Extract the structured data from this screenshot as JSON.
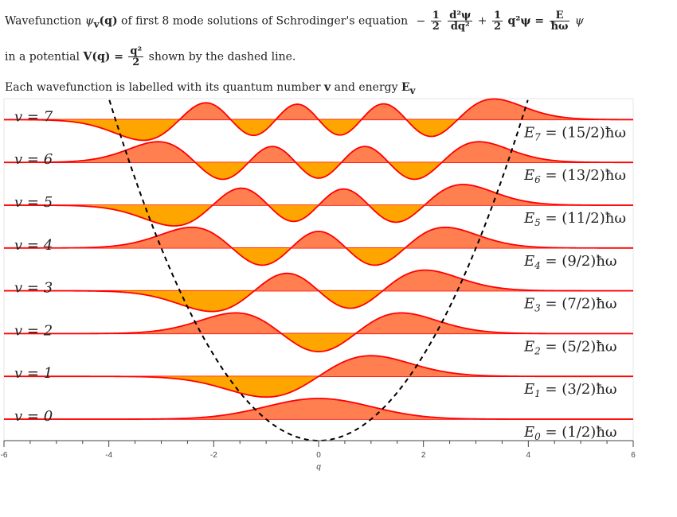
{
  "header": {
    "line1_prefix": "Wavefunction",
    "line1_psi": "ψ",
    "line1_sub": "v",
    "line1_arg": "(q)",
    "line1_mid": "of first 8 mode solutions of Schrodinger's equation",
    "eq_minus": "−",
    "eq_frac1_num": "1",
    "eq_frac1_den": "2",
    "eq_frac2_num": "d²ψ",
    "eq_frac2_den": "dq²",
    "eq_plus": "+",
    "eq_frac3_num": "1",
    "eq_frac3_den": "2",
    "eq_term2": "q²ψ =",
    "eq_frac4_num": "E",
    "eq_frac4_den": "ħω",
    "eq_tail": "ψ",
    "line2_prefix": "in a potential",
    "line2_V": "V(q) =",
    "line2_frac_num": "q²",
    "line2_frac_den": "2",
    "line2_suffix": "shown by the dashed line.",
    "line3_prefix": "Each wavefunction is labelled with its quantum number",
    "line3_v": "v",
    "line3_mid": "and energy",
    "line3_E": "E",
    "line3_Esub": "v"
  },
  "chart_data": {
    "type": "line",
    "x_range": [
      -6,
      6
    ],
    "xlabel": "q",
    "x_ticks": [
      "-6",
      "-4",
      "-2",
      "0",
      "2",
      "4",
      "6"
    ],
    "potential": "q^2/2",
    "fill_positive_color": "#ff7f50",
    "fill_negative_color": "#ffa500",
    "line_color": "#ff0000",
    "potential_color": "#000000",
    "series": [
      {
        "v": 0,
        "label": "v = 0",
        "energy": "E0 = (1/2)ħω",
        "E_sub": "0",
        "E_value": "(1/2)ħω"
      },
      {
        "v": 1,
        "label": "v = 1",
        "energy": "E1 = (3/2)ħω",
        "E_sub": "1",
        "E_value": "(3/2)ħω"
      },
      {
        "v": 2,
        "label": "v = 2",
        "energy": "E2 = (5/2)ħω",
        "E_sub": "2",
        "E_value": "(5/2)ħω"
      },
      {
        "v": 3,
        "label": "v = 3",
        "energy": "E3 = (7/2)ħω",
        "E_sub": "3",
        "E_value": "(7/2)ħω"
      },
      {
        "v": 4,
        "label": "v = 4",
        "energy": "E4 = (9/2)ħω",
        "E_sub": "4",
        "E_value": "(9/2)ħω"
      },
      {
        "v": 5,
        "label": "v = 5",
        "energy": "E5 = (11/2)ħω",
        "E_sub": "5",
        "E_value": "(11/2)ħω"
      },
      {
        "v": 6,
        "label": "v = 6",
        "energy": "E6 = (13/2)ħω",
        "E_sub": "6",
        "E_value": "(13/2)ħω"
      },
      {
        "v": 7,
        "label": "v = 7",
        "energy": "E7 = (15/2)ħω",
        "E_sub": "7",
        "E_value": "(15/2)ħω"
      }
    ]
  }
}
